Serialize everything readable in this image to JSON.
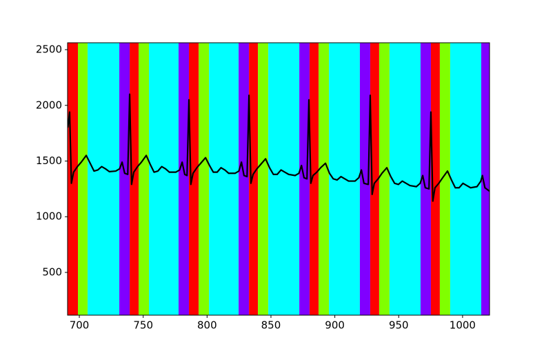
{
  "chart_data": {
    "type": "line",
    "x": [
      691,
      692.4,
      693.8,
      695.5,
      698.5,
      701.5,
      705.4,
      708.5,
      711.5,
      714.5,
      717.5,
      720.5,
      723.5,
      728.5,
      731.5,
      733.5,
      735.5,
      737.9,
      739.4,
      740.9,
      742.6,
      745.6,
      748.6,
      752.4,
      755.5,
      758.5,
      761.5,
      764.5,
      767.5,
      770.5,
      775.5,
      778.5,
      780.5,
      782.5,
      784.3,
      785.8,
      787.3,
      789,
      792,
      795,
      798.8,
      801.9,
      804.9,
      807.9,
      810.9,
      813.9,
      816.9,
      821.9,
      824.9,
      826.9,
      828.9,
      831.3,
      832.8,
      834.3,
      836,
      839,
      842,
      845.8,
      848.9,
      851.9,
      854.9,
      857.9,
      860.9,
      863.9,
      868.9,
      871.9,
      873.9,
      875.9,
      878.2,
      879.7,
      881.2,
      882.9,
      885.9,
      888.9,
      892.7,
      895.8,
      898.8,
      901.8,
      904.8,
      907.8,
      910.8,
      915.8,
      918.8,
      920.8,
      922.8,
      926.2,
      927.7,
      929.2,
      930.9,
      933.9,
      936.9,
      940.7,
      943.8,
      946.8,
      949.8,
      952.8,
      955.8,
      958.8,
      963.8,
      966.8,
      968.8,
      970.8,
      973.7,
      975.2,
      976.7,
      978.4,
      981.4,
      984.4,
      988.2,
      991.3,
      994.3,
      997.3,
      1000.3,
      1003.3,
      1006.3,
      1011.3,
      1014.3,
      1015.5,
      1017.5,
      1021
    ],
    "values": [
      1800,
      1940,
      1300,
      1400,
      1450,
      1490,
      1550,
      1480,
      1410,
      1420,
      1450,
      1430,
      1405,
      1410,
      1430,
      1490,
      1390,
      1380,
      2100,
      1290,
      1400,
      1450,
      1490,
      1550,
      1470,
      1400,
      1410,
      1450,
      1430,
      1400,
      1400,
      1420,
      1490,
      1380,
      1370,
      2050,
      1290,
      1390,
      1440,
      1480,
      1530,
      1460,
      1400,
      1400,
      1440,
      1420,
      1390,
      1390,
      1410,
      1490,
      1370,
      1360,
      2090,
      1300,
      1380,
      1430,
      1470,
      1520,
      1440,
      1380,
      1380,
      1420,
      1400,
      1380,
      1370,
      1390,
      1460,
      1350,
      1340,
      2050,
      1300,
      1370,
      1400,
      1440,
      1480,
      1390,
      1340,
      1330,
      1360,
      1340,
      1320,
      1320,
      1350,
      1420,
      1300,
      1290,
      2090,
      1200,
      1300,
      1340,
      1390,
      1440,
      1360,
      1300,
      1290,
      1320,
      1300,
      1280,
      1270,
      1300,
      1370,
      1260,
      1250,
      1940,
      1140,
      1260,
      1300,
      1350,
      1410,
      1330,
      1260,
      1260,
      1300,
      1280,
      1260,
      1270,
      1320,
      1370,
      1260,
      1230
    ],
    "color": "#000000",
    "spans": [
      {
        "x0": 690.8,
        "x1": 698.9,
        "color": "#ff0000"
      },
      {
        "x0": 698.9,
        "x1": 706.5,
        "color": "#80ff00"
      },
      {
        "x0": 706.5,
        "x1": 731.3,
        "color": "#00ffff"
      },
      {
        "x0": 731.3,
        "x1": 739.4,
        "color": "#8000ff"
      },
      {
        "x0": 739.4,
        "x1": 746.4,
        "color": "#ff0000"
      },
      {
        "x0": 746.4,
        "x1": 754.5,
        "color": "#80ff00"
      },
      {
        "x0": 754.5,
        "x1": 777.7,
        "color": "#00ffff"
      },
      {
        "x0": 777.7,
        "x1": 785.8,
        "color": "#8000ff"
      },
      {
        "x0": 785.8,
        "x1": 793.4,
        "color": "#ff0000"
      },
      {
        "x0": 793.4,
        "x1": 801.5,
        "color": "#80ff00"
      },
      {
        "x0": 801.5,
        "x1": 824.7,
        "color": "#00ffff"
      },
      {
        "x0": 824.7,
        "x1": 832.8,
        "color": "#8000ff"
      },
      {
        "x0": 832.8,
        "x1": 839.8,
        "color": "#ff0000"
      },
      {
        "x0": 839.8,
        "x1": 847.9,
        "color": "#80ff00"
      },
      {
        "x0": 847.9,
        "x1": 872.2,
        "color": "#00ffff"
      },
      {
        "x0": 872.2,
        "x1": 880.2,
        "color": "#8000ff"
      },
      {
        "x0": 880.2,
        "x1": 887.3,
        "color": "#ff0000"
      },
      {
        "x0": 887.3,
        "x1": 895.4,
        "color": "#80ff00"
      },
      {
        "x0": 895.4,
        "x1": 919.6,
        "color": "#00ffff"
      },
      {
        "x0": 919.6,
        "x1": 927.7,
        "color": "#8000ff"
      },
      {
        "x0": 927.7,
        "x1": 934.7,
        "color": "#ff0000"
      },
      {
        "x0": 934.7,
        "x1": 942.8,
        "color": "#80ff00"
      },
      {
        "x0": 942.8,
        "x1": 967.1,
        "color": "#00ffff"
      },
      {
        "x0": 967.1,
        "x1": 975.2,
        "color": "#8000ff"
      },
      {
        "x0": 975.2,
        "x1": 982.2,
        "color": "#ff0000"
      },
      {
        "x0": 982.2,
        "x1": 990.3,
        "color": "#80ff00"
      },
      {
        "x0": 990.3,
        "x1": 1014.6,
        "color": "#00ffff"
      },
      {
        "x0": 1014.6,
        "x1": 1021.1,
        "color": "#8000ff"
      }
    ],
    "xlim": [
      690.8,
      1021.1
    ],
    "ylim": [
      116,
      2562
    ],
    "xticks": [
      700,
      750,
      800,
      850,
      900,
      950,
      1000
    ],
    "yticks": [
      500,
      1000,
      1500,
      2000,
      2500
    ]
  }
}
